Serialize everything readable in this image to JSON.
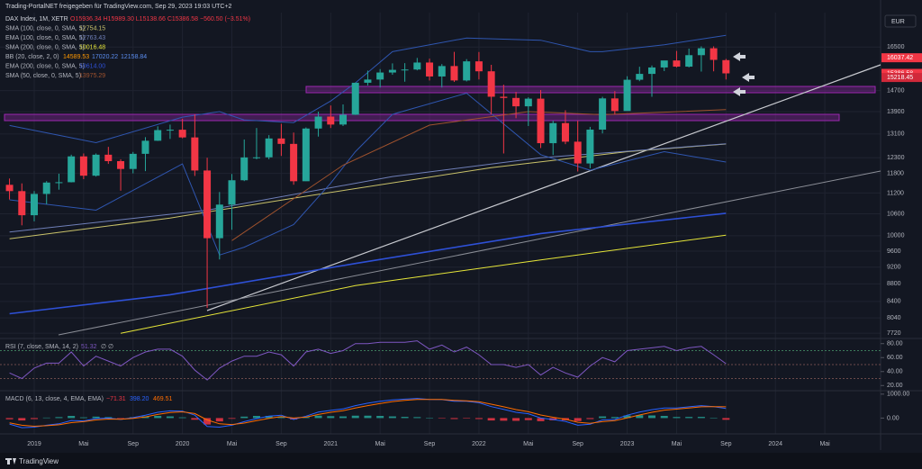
{
  "header": "Trading-PortalNET freigegeben für TradingView.com, Sep 29, 2023 19:03 UTC+2",
  "currency": "EUR",
  "footer": "TradingView",
  "chart_data": [
    {
      "type": "candlestick",
      "symbol": "DAX Index, 1M, XETR",
      "ohlc_label": "O15936.34 H15989.30 L15138.66 C15386.58 −560.50 (−3.51%)",
      "up_color": "#26a69a",
      "down_color": "#f23645",
      "x": [
        "2018-11",
        "2018-12",
        "2019-01",
        "2019-02",
        "2019-03",
        "2019-04",
        "2019-05",
        "2019-06",
        "2019-07",
        "2019-08",
        "2019-09",
        "2019-10",
        "2019-11",
        "2019-12",
        "2020-01",
        "2020-02",
        "2020-03",
        "2020-04",
        "2020-05",
        "2020-06",
        "2020-07",
        "2020-08",
        "2020-09",
        "2020-10",
        "2020-11",
        "2020-12",
        "2021-01",
        "2021-02",
        "2021-03",
        "2021-04",
        "2021-05",
        "2021-06",
        "2021-07",
        "2021-08",
        "2021-09",
        "2021-10",
        "2021-11",
        "2021-12",
        "2022-01",
        "2022-02",
        "2022-03",
        "2022-04",
        "2022-05",
        "2022-06",
        "2022-07",
        "2022-08",
        "2022-09",
        "2022-10",
        "2022-11",
        "2022-12",
        "2023-01",
        "2023-02",
        "2023-03",
        "2023-04",
        "2023-05",
        "2023-06",
        "2023-07",
        "2023-08",
        "2023-09"
      ],
      "ohlc": [
        [
          11447,
          11640,
          11010,
          11257
        ],
        [
          11257,
          11490,
          10280,
          10559
        ],
        [
          10559,
          11260,
          10390,
          11173
        ],
        [
          11173,
          11560,
          10870,
          11516
        ],
        [
          11516,
          11790,
          11300,
          11526
        ],
        [
          11526,
          12400,
          11520,
          12344
        ],
        [
          12344,
          12440,
          11620,
          11727
        ],
        [
          11727,
          12440,
          11700,
          12399
        ],
        [
          12399,
          12660,
          12100,
          12189
        ],
        [
          12189,
          12250,
          11270,
          11939
        ],
        [
          11939,
          12490,
          11800,
          12428
        ],
        [
          12428,
          12990,
          11870,
          12867
        ],
        [
          12867,
          13370,
          12860,
          13236
        ],
        [
          13236,
          13430,
          12930,
          13249
        ],
        [
          13249,
          13640,
          12950,
          12981
        ],
        [
          12981,
          13800,
          11720,
          11890
        ],
        [
          11890,
          12300,
          8256,
          9935
        ],
        [
          9935,
          11230,
          9390,
          10861
        ],
        [
          10861,
          11780,
          10160,
          11586
        ],
        [
          11586,
          12910,
          11560,
          12310
        ],
        [
          12310,
          13310,
          12250,
          12313
        ],
        [
          12313,
          13060,
          12250,
          12945
        ],
        [
          12945,
          13460,
          12360,
          12760
        ],
        [
          12760,
          13150,
          11450,
          11556
        ],
        [
          11556,
          13330,
          11560,
          13291
        ],
        [
          13291,
          13900,
          13010,
          13719
        ],
        [
          13719,
          14130,
          13310,
          13432
        ],
        [
          13432,
          14170,
          13380,
          13786
        ],
        [
          13786,
          15010,
          13780,
          15008
        ],
        [
          15008,
          15500,
          14900,
          15136
        ],
        [
          15136,
          15560,
          14820,
          15421
        ],
        [
          15421,
          15800,
          15330,
          15531
        ],
        [
          15531,
          15810,
          15050,
          15544
        ],
        [
          15544,
          16030,
          15510,
          15835
        ],
        [
          15835,
          16000,
          15100,
          15260
        ],
        [
          15260,
          15770,
          14820,
          15688
        ],
        [
          15688,
          16290,
          15040,
          15100
        ],
        [
          15100,
          15980,
          15060,
          15885
        ],
        [
          15885,
          16285,
          15140,
          15471
        ],
        [
          15471,
          15740,
          13800,
          14461
        ],
        [
          14461,
          14930,
          12440,
          14415
        ],
        [
          14415,
          14650,
          13660,
          14098
        ],
        [
          14098,
          14440,
          13380,
          14388
        ],
        [
          14388,
          14720,
          12620,
          12784
        ],
        [
          12784,
          13570,
          12390,
          13484
        ],
        [
          13484,
          13950,
          12750,
          12835
        ],
        [
          12835,
          13570,
          11860,
          12114
        ],
        [
          12114,
          13350,
          11960,
          13253
        ],
        [
          13253,
          14460,
          13120,
          14397
        ],
        [
          14397,
          14680,
          13790,
          13924
        ],
        [
          13924,
          15270,
          13980,
          15128
        ],
        [
          15128,
          15660,
          15070,
          15365
        ],
        [
          15365,
          15710,
          14460,
          15629
        ],
        [
          15629,
          15900,
          15480,
          15922
        ],
        [
          15922,
          16330,
          15630,
          15664
        ],
        [
          15664,
          16430,
          15630,
          16148
        ],
        [
          16148,
          16530,
          15460,
          16447
        ],
        [
          16447,
          16530,
          15470,
          15947
        ],
        [
          15936.34,
          15989.3,
          15138.66,
          15386.58
        ]
      ],
      "scale": "log",
      "ylim": [
        7650,
        16990
      ],
      "yticks": [
        16500,
        14700,
        13900,
        13100,
        12300,
        11800,
        11200,
        10600,
        10000,
        9600,
        9200,
        8800,
        8400,
        8040,
        7720
      ],
      "grid": true,
      "price_labels": [
        {
          "value": 16037.42,
          "color": "#f23645"
        },
        {
          "value": 15386.58,
          "color": "#f23645"
        },
        {
          "value": 15218.45,
          "color": "#d1293a"
        }
      ],
      "overlays": [
        {
          "name": "SMA (100, close, 0, SMA, 5)",
          "value_label": "12754.15",
          "color": "#c9c26a",
          "x": [
            "2018-11",
            "2019-12",
            "2020-10",
            "2022-02",
            "2023-01",
            "2023-09"
          ],
          "values": [
            9920,
            10480,
            11050,
            11980,
            12500,
            12754.15
          ]
        },
        {
          "name": "EMA (100, close, 0, SMA, 5)",
          "value_label": "12763.43",
          "color": "#6f7fb8",
          "x": [
            "2018-11",
            "2020-03",
            "2021-06",
            "2022-06",
            "2023-09"
          ],
          "values": [
            10100,
            10700,
            11700,
            12300,
            12763.43
          ]
        },
        {
          "name": "SMA (200, close, 0, SMA, 5)",
          "value_label": "10016.48",
          "color": "#e6e639",
          "x": [
            "2019-08",
            "2021-03",
            "2022-06",
            "2023-09"
          ],
          "values": [
            7720,
            8760,
            9380,
            10016.48
          ]
        },
        {
          "name": "BB (20, close, 2, 0)",
          "value_labels": [
            "14589.53",
            "17020.22",
            "12158.84"
          ],
          "color": "#2f56b0",
          "x": [
            "2018-11",
            "2019-06",
            "2020-01",
            "2020-04",
            "2020-06",
            "2020-10",
            "2021-01",
            "2021-03",
            "2021-06",
            "2021-12",
            "2022-06",
            "2022-10",
            "2022-11",
            "2023-04",
            "2023-09"
          ],
          "upper": [
            13400,
            12800,
            13700,
            13900,
            13600,
            13500,
            14300,
            15000,
            16300,
            16900,
            16800,
            16300,
            16300,
            16600,
            17020.22
          ],
          "lower": [
            11000,
            10700,
            12100,
            9500,
            9700,
            10300,
            11500,
            12500,
            13800,
            14600,
            12400,
            11900,
            12000,
            12500,
            12158.84
          ]
        },
        {
          "name": "EMA (200, close, 0, SMA, 5)",
          "value_label": "10614.00",
          "color": "#2e50d6",
          "x": [
            "2018-11",
            "2019-12",
            "2021-03",
            "2022-06",
            "2023-09"
          ],
          "values": [
            8130,
            8550,
            9290,
            10060,
            10614
          ]
        },
        {
          "name": "SMA (50, close, 0, SMA, 5)",
          "value_label": "13975.29",
          "color": "#a0522d",
          "x": [
            "2020-05",
            "2021-02",
            "2021-09",
            "2022-05",
            "2022-11",
            "2023-09"
          ],
          "values": [
            9870,
            12060,
            13410,
            13900,
            13790,
            13975.29
          ]
        }
      ],
      "xticks": [
        {
          "value": "2019-01",
          "label": "2019"
        },
        {
          "value": "2019-05",
          "label": "Mai"
        },
        {
          "value": "2019-09",
          "label": "Sep"
        },
        {
          "value": "2020-01",
          "label": "2020"
        },
        {
          "value": "2020-05",
          "label": "Mai"
        },
        {
          "value": "2020-09",
          "label": "Sep"
        },
        {
          "value": "2021-01",
          "label": "2021"
        },
        {
          "value": "2021-05",
          "label": "Mai"
        },
        {
          "value": "2021-09",
          "label": "Sep"
        },
        {
          "value": "2022-01",
          "label": "2022"
        },
        {
          "value": "2022-05",
          "label": "Mai"
        },
        {
          "value": "2022-09",
          "label": "Sep"
        },
        {
          "value": "2023-01",
          "label": "2023"
        },
        {
          "value": "2023-05",
          "label": "Mai"
        },
        {
          "value": "2023-09",
          "label": "Sep"
        },
        {
          "value": "2024-01",
          "label": "2024"
        },
        {
          "value": "2024-05",
          "label": "Mai"
        }
      ]
    },
    {
      "type": "line",
      "name": "RSI (7, close, SMA, 14, 2)",
      "extra_label": "∅ ∅",
      "color": "#7e57c2",
      "values": [
        38,
        30,
        45,
        52,
        52,
        68,
        48,
        62,
        55,
        48,
        60,
        68,
        72,
        72,
        62,
        42,
        28,
        45,
        55,
        62,
        62,
        68,
        64,
        48,
        68,
        72,
        66,
        70,
        80,
        80,
        82,
        82,
        82,
        84,
        72,
        78,
        68,
        75,
        64,
        50,
        50,
        46,
        50,
        35,
        46,
        38,
        32,
        48,
        60,
        54,
        70,
        72,
        74,
        76,
        70,
        74,
        76,
        64,
        51.32
      ],
      "ylim": [
        15.2,
        84.8
      ],
      "yticks": [
        {
          "value": 80,
          "label": "80.00"
        },
        {
          "value": 60,
          "label": "60.00"
        },
        {
          "value": 40,
          "label": "40.00"
        },
        {
          "value": 20,
          "label": "20.00"
        }
      ],
      "levels": [
        70,
        50,
        30
      ]
    },
    {
      "type": "macd",
      "name": "MACD (6, 13, close, 4, EMA, EMA)",
      "legend_values": [
        "−71.31",
        "398.20",
        "469.51"
      ],
      "histogram": [
        -50,
        -100,
        -40,
        20,
        40,
        90,
        30,
        60,
        40,
        -10,
        35,
        70,
        90,
        70,
        30,
        -70,
        -270,
        -140,
        -30,
        60,
        90,
        90,
        60,
        -60,
        40,
        100,
        80,
        70,
        100,
        100,
        90,
        70,
        50,
        40,
        0,
        -5,
        -40,
        -20,
        -40,
        -100,
        -110,
        -115,
        -85,
        -130,
        -95,
        -90,
        -125,
        -42,
        70,
        45,
        110,
        120,
        110,
        90,
        45,
        47,
        50,
        5,
        -71.31
      ],
      "macd": [
        -250,
        -400,
        -380,
        -300,
        -240,
        -100,
        -120,
        -20,
        0,
        -60,
        20,
        120,
        240,
        300,
        290,
        120,
        -350,
        -380,
        -300,
        -150,
        -20,
        80,
        120,
        -60,
        80,
        250,
        320,
        380,
        520,
        620,
        700,
        760,
        790,
        820,
        780,
        770,
        700,
        700,
        640,
        480,
        360,
        240,
        180,
        0,
        -60,
        -140,
        -300,
        -260,
        -80,
        -60,
        120,
        250,
        350,
        420,
        420,
        470,
        520,
        480,
        398.2
      ],
      "signal": [
        -200,
        -300,
        -340,
        -320,
        -280,
        -190,
        -150,
        -80,
        -40,
        -50,
        -15,
        50,
        150,
        230,
        260,
        190,
        -80,
        -240,
        -270,
        -210,
        -110,
        -10,
        60,
        0,
        40,
        150,
        240,
        310,
        420,
        520,
        610,
        690,
        740,
        780,
        780,
        775,
        740,
        720,
        680,
        580,
        470,
        355,
        265,
        130,
        35,
        -50,
        -175,
        -218,
        -150,
        -105,
        10,
        130,
        240,
        330,
        375,
        423,
        470,
        475,
        469.51
      ],
      "macd_color": "#2962ff",
      "signal_color": "#ff6d00",
      "hist_up": "#26a69a",
      "hist_down": "#f23645",
      "ylim": [
        -586,
        1069
      ],
      "yticks": [
        {
          "value": 1000,
          "label": "1000.00"
        },
        {
          "value": 0,
          "label": "0.00"
        }
      ]
    }
  ]
}
